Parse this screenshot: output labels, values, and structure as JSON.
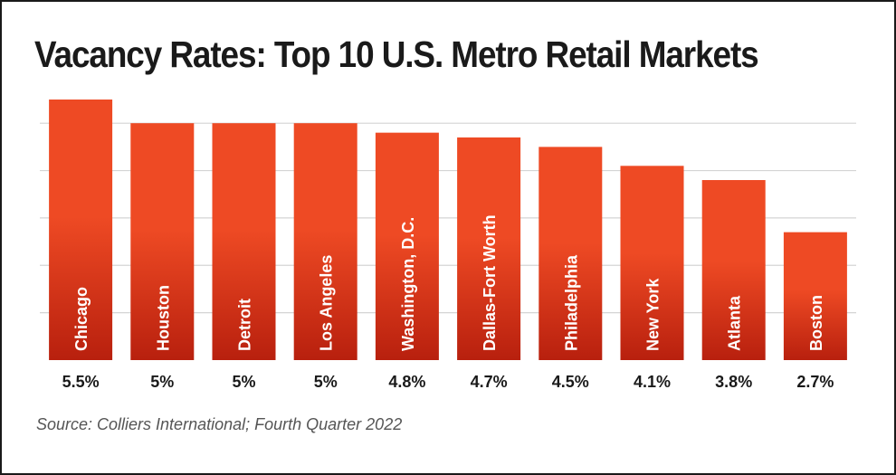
{
  "title": "Vacancy Rates: Top 10 U.S. Metro Retail Markets",
  "source": "Source: Colliers International; Fourth Quarter 2022",
  "colors": {
    "bar_top": "#ee4a24",
    "bar_bottom": "#b8200e",
    "grid": "#d4d4d4",
    "text": "#1a1a1a",
    "bar_label": "#ffffff"
  },
  "chart_data": {
    "type": "bar",
    "title": "Vacancy Rates: Top 10 U.S. Metro Retail Markets",
    "categories": [
      "Chicago",
      "Houston",
      "Detroit",
      "Los Angeles",
      "Washington, D.C.",
      "Dallas-Fort Worth",
      "Philadelphia",
      "New York",
      "Atlanta",
      "Boston"
    ],
    "values": [
      5.5,
      5,
      5,
      5,
      4.8,
      4.7,
      4.5,
      4.1,
      3.8,
      2.7
    ],
    "value_labels": [
      "5.5%",
      "5%",
      "5%",
      "5%",
      "4.8%",
      "4.7%",
      "4.5%",
      "4.1%",
      "3.8%",
      "2.7%"
    ],
    "xlabel": "",
    "ylabel": "",
    "ylim": [
      0,
      5.5
    ],
    "grid": true,
    "category_labels_inside_bars": true,
    "legend": "none"
  }
}
